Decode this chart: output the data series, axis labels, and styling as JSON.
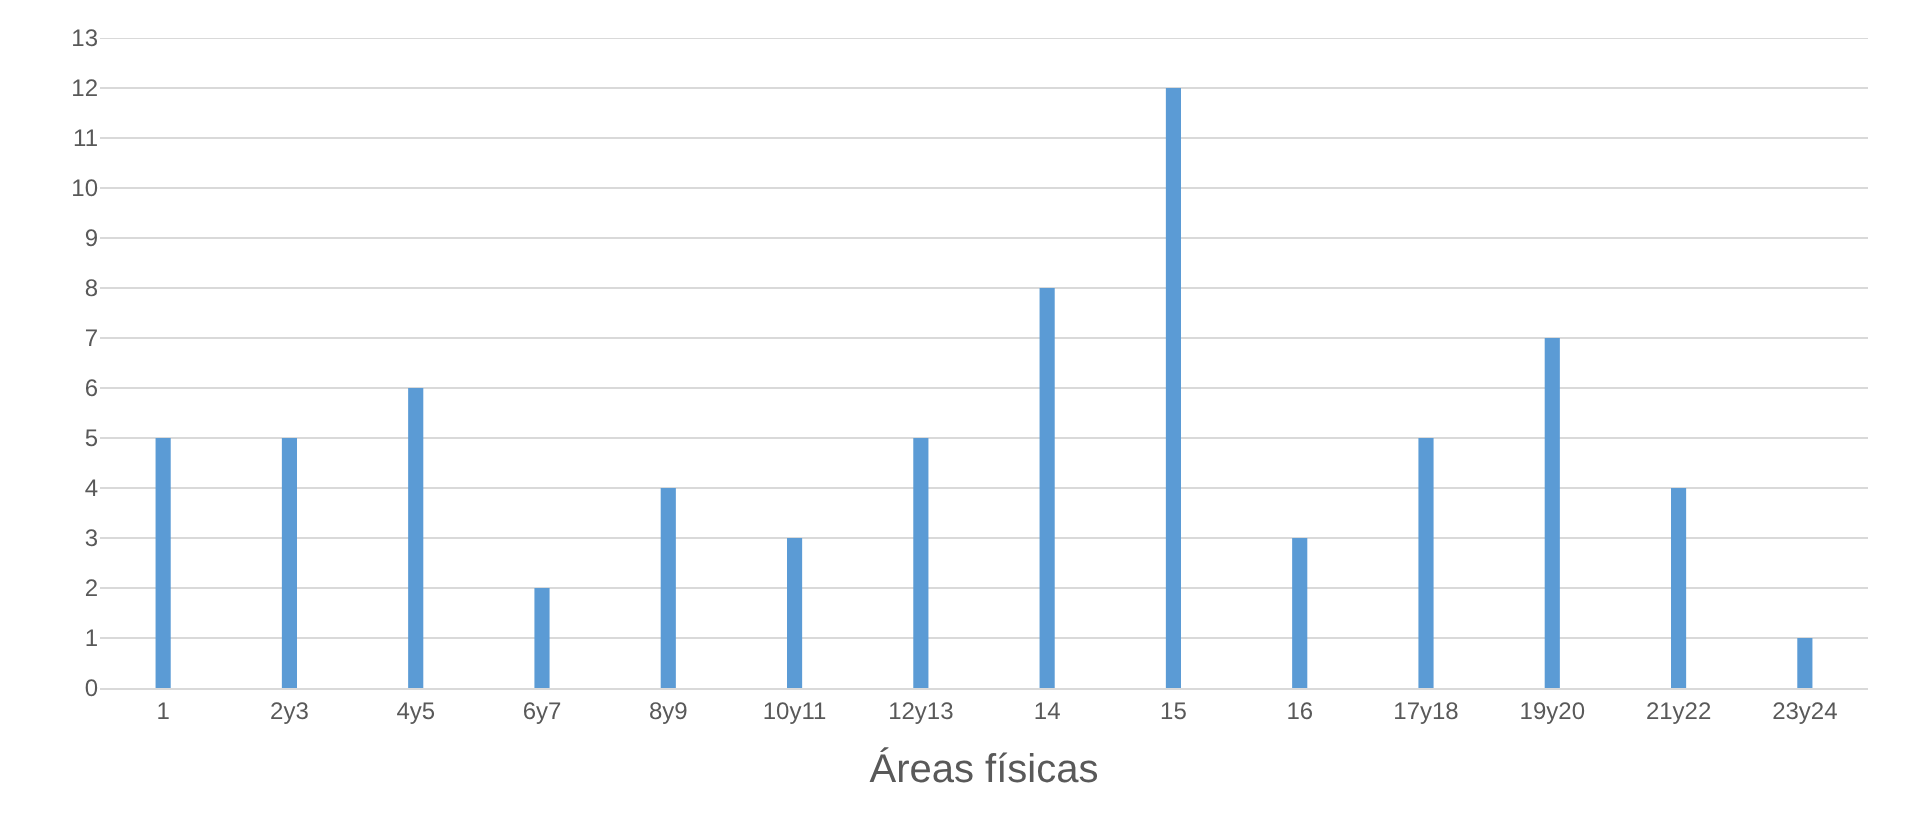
{
  "chart_data": {
    "type": "bar",
    "xlabel": "Áreas físicas",
    "categories": [
      "1",
      "2y3",
      "4y5",
      "6y7",
      "8y9",
      "10y11",
      "12y13",
      "14",
      "15",
      "16",
      "17y18",
      "19y20",
      "21y22",
      "23y24"
    ],
    "values": [
      5,
      5,
      6,
      2,
      4,
      3,
      5,
      8,
      12,
      3,
      5,
      7,
      4,
      1
    ],
    "color": "#5b9bd5",
    "ylim": [
      0,
      13
    ],
    "yticks": [
      0,
      1,
      2,
      3,
      4,
      5,
      6,
      7,
      8,
      9,
      10,
      11,
      12,
      13
    ],
    "grid": "y"
  }
}
